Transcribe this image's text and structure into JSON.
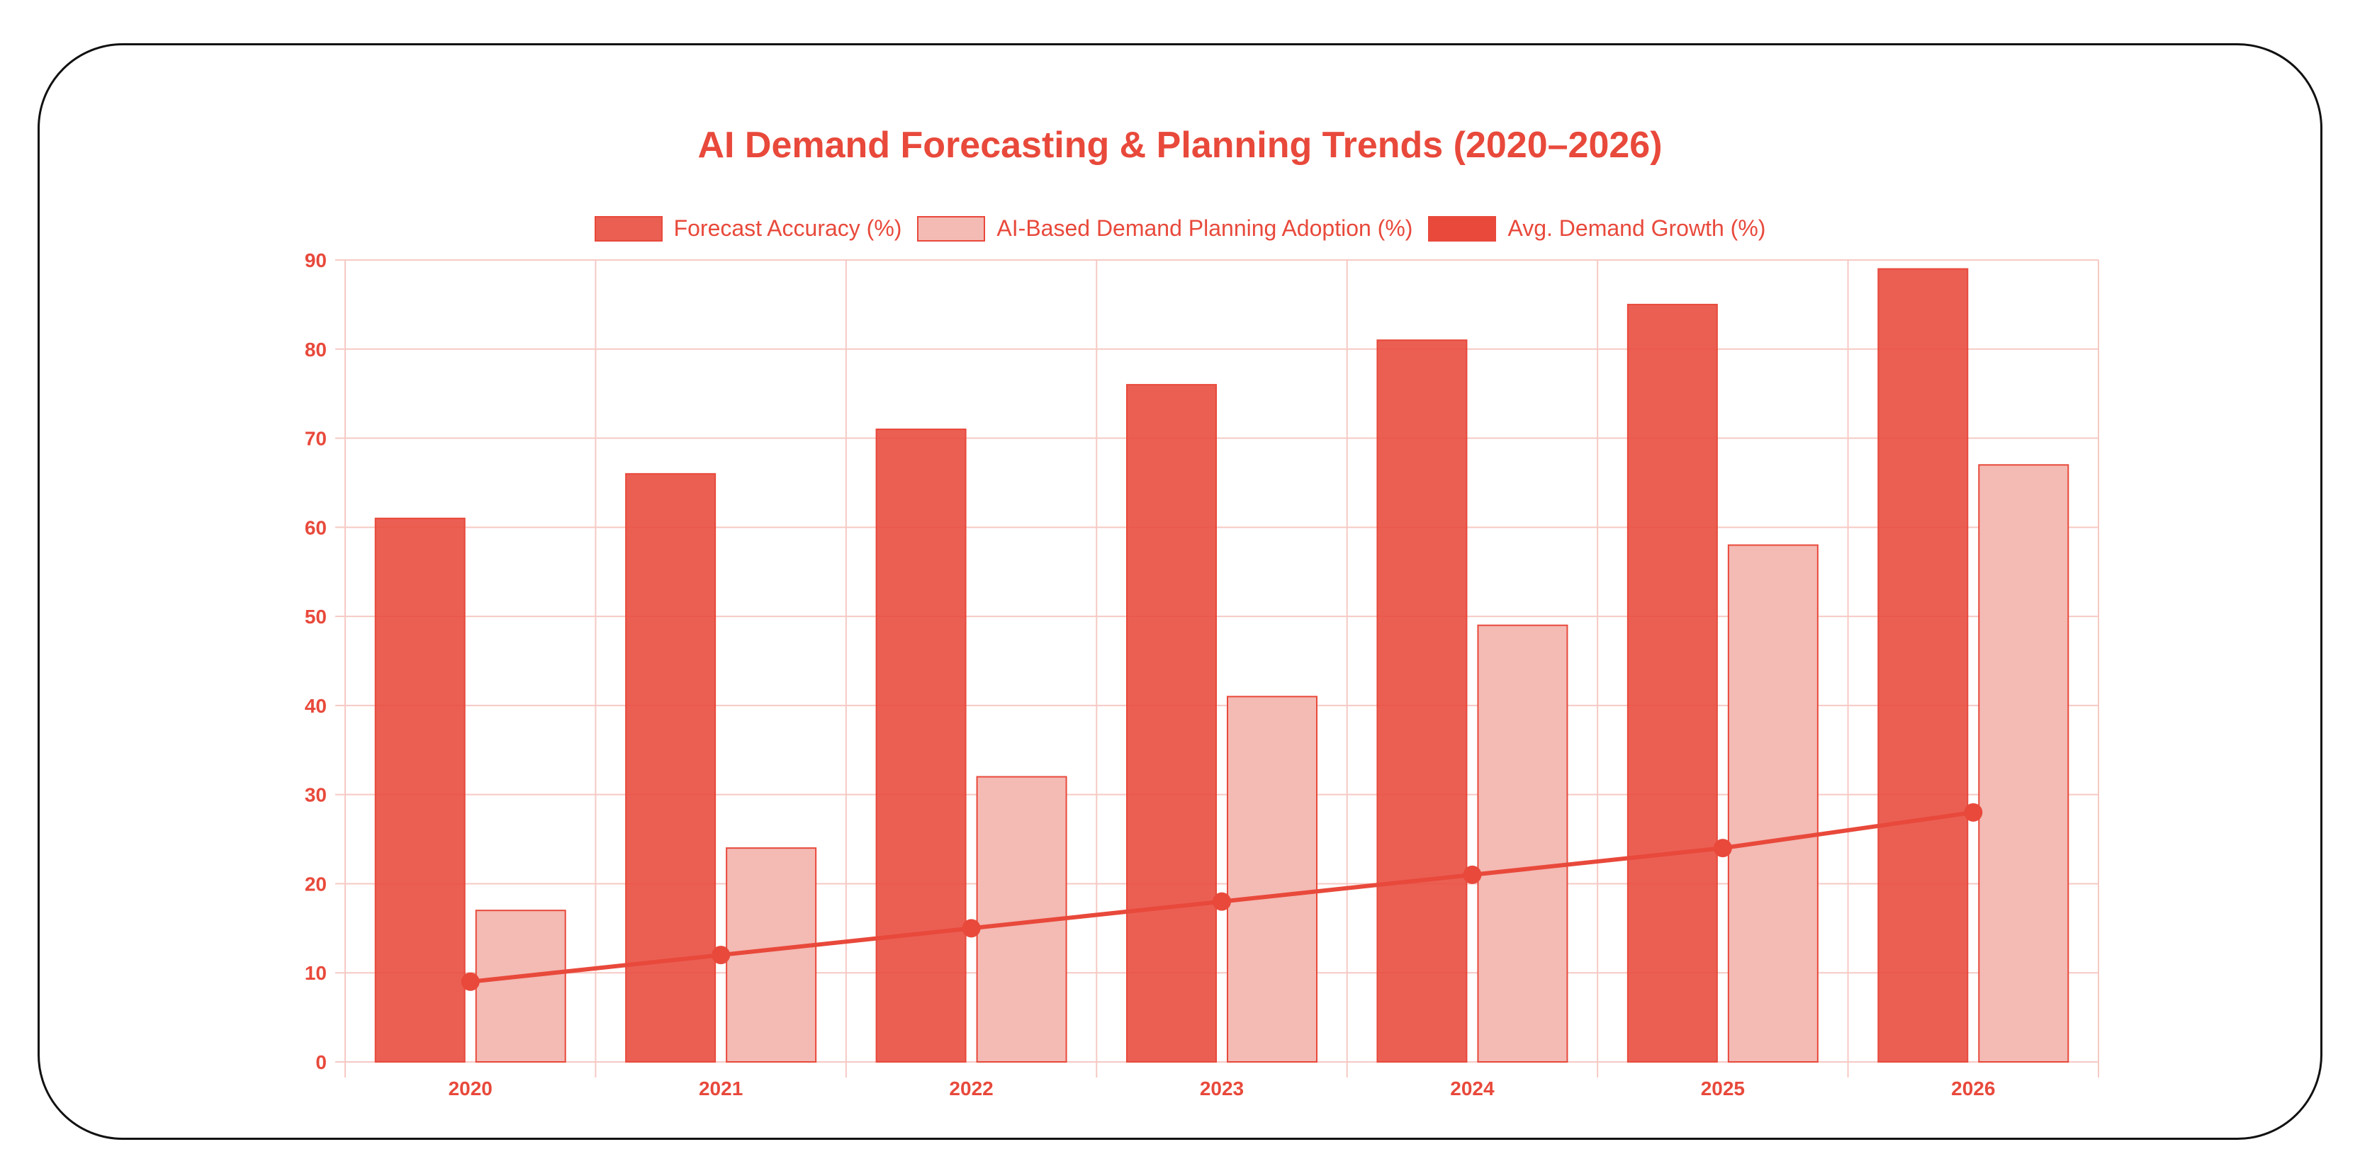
{
  "chart_data": {
    "type": "bar",
    "title": "AI Demand Forecasting & Planning Trends (2020–2026)",
    "xlabel": "",
    "ylabel": "",
    "categories": [
      "2020",
      "2021",
      "2022",
      "2023",
      "2024",
      "2025",
      "2026"
    ],
    "ylim": [
      0,
      90
    ],
    "yticks": [
      0,
      10,
      20,
      30,
      40,
      50,
      60,
      70,
      80,
      90
    ],
    "grid": true,
    "legend_position": "top",
    "series": [
      {
        "name": "Forecast Accuracy (%)",
        "kind": "bar",
        "color": "#e8493b",
        "values": [
          61,
          66,
          71,
          76,
          81,
          85,
          89
        ]
      },
      {
        "name": "AI-Based Demand Planning Adoption (%)",
        "kind": "bar",
        "color": "#f4bab4",
        "values": [
          17,
          24,
          32,
          41,
          49,
          58,
          67
        ]
      },
      {
        "name": "Avg. Demand Growth (%)",
        "kind": "line",
        "color": "#e8493b",
        "values": [
          9,
          12,
          15,
          18,
          21,
          24,
          28
        ]
      }
    ]
  }
}
